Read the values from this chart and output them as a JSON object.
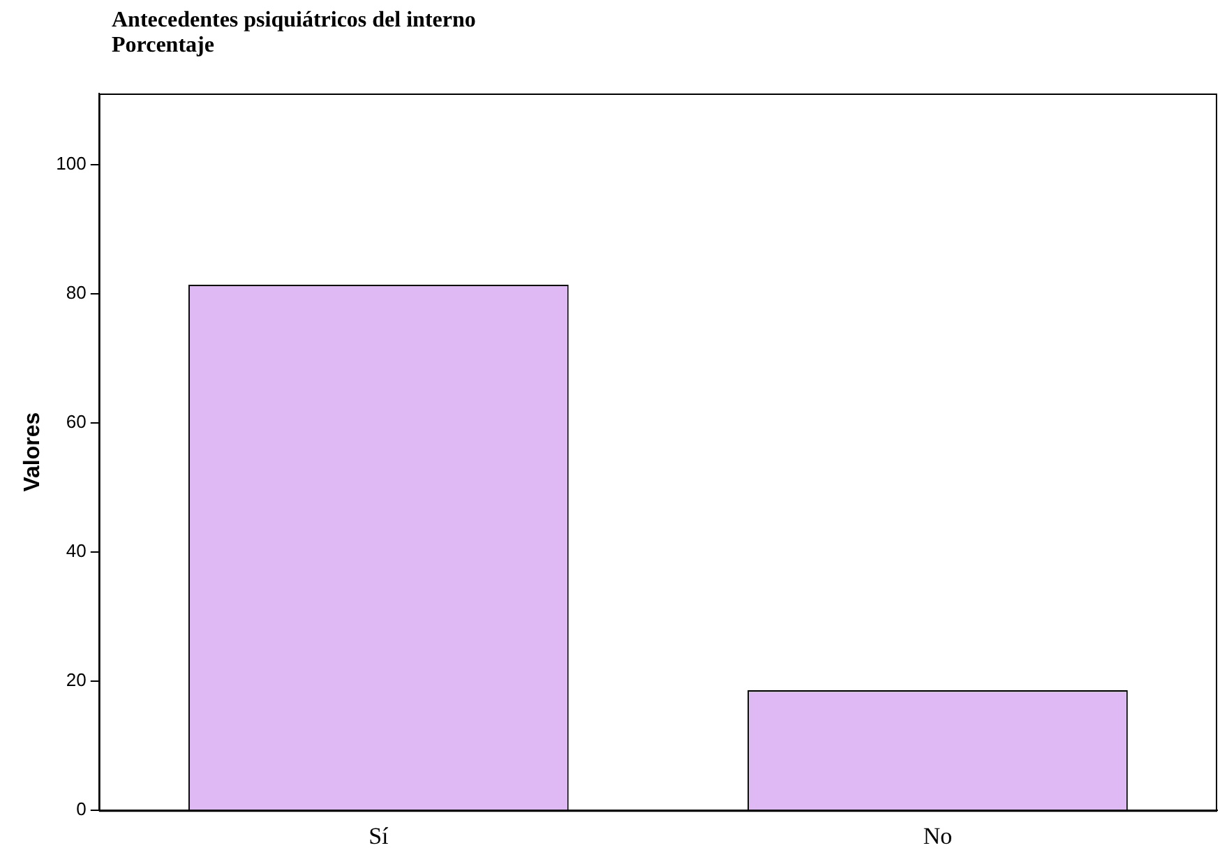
{
  "chart_data": {
    "type": "bar",
    "title": "Antecedentes psiquiátricos del interno",
    "subtitle": "Porcentaje",
    "ylabel": "Valores",
    "categories": [
      "Sí",
      "No"
    ],
    "values": [
      81.4,
      18.6
    ],
    "color": "#dfb9f3",
    "ylim": [
      0,
      111
    ],
    "yticks": [
      0,
      20,
      40,
      60,
      80,
      100
    ],
    "grid": false
  }
}
